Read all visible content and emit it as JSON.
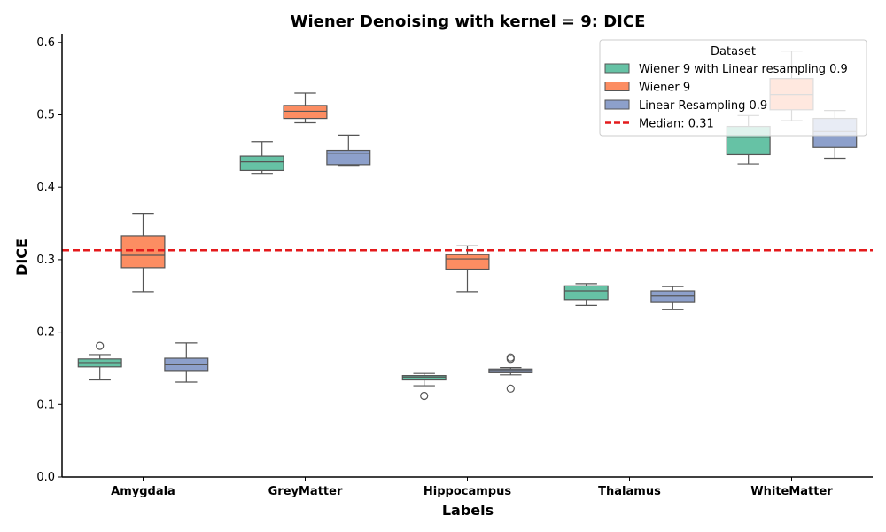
{
  "chart_data": {
    "type": "box",
    "title": "Wiener Denoising with kernel = 9: DICE",
    "xlabel": "Labels",
    "ylabel": "DICE",
    "ylim": [
      0,
      0.612
    ],
    "yticks": [
      "0.0",
      "0.1",
      "0.2",
      "0.3",
      "0.4",
      "0.5",
      "0.6"
    ],
    "categories": [
      "Amygdala",
      "GreyMatter",
      "Hippocampus",
      "Thalamus",
      "WhiteMatter"
    ],
    "legend": {
      "title": "Dataset",
      "placement": "top-right",
      "median_label": "Median: 0.31"
    },
    "median_line": {
      "value": 0.313,
      "color": "#e41a1c"
    },
    "series": [
      {
        "name": "Wiener 9 with Linear resampling 0.9",
        "color": "#66c2a5",
        "boxes": [
          {
            "category": "Amygdala",
            "whisker_low": 0.134,
            "q1": 0.152,
            "median": 0.158,
            "q3": 0.163,
            "whisker_high": 0.169,
            "outliers": [
              0.181
            ]
          },
          {
            "category": "GreyMatter",
            "whisker_low": 0.419,
            "q1": 0.423,
            "median": 0.435,
            "q3": 0.443,
            "whisker_high": 0.463,
            "outliers": []
          },
          {
            "category": "Hippocampus",
            "whisker_low": 0.126,
            "q1": 0.134,
            "median": 0.138,
            "q3": 0.14,
            "whisker_high": 0.143,
            "outliers": [
              0.112
            ]
          },
          {
            "category": "Thalamus",
            "whisker_low": 0.237,
            "q1": 0.245,
            "median": 0.257,
            "q3": 0.264,
            "whisker_high": 0.267,
            "outliers": []
          },
          {
            "category": "WhiteMatter",
            "whisker_low": 0.432,
            "q1": 0.445,
            "median": 0.469,
            "q3": 0.484,
            "whisker_high": 0.499,
            "outliers": []
          }
        ]
      },
      {
        "name": "Wiener 9",
        "color": "#fc8d62",
        "boxes": [
          {
            "category": "Amygdala",
            "whisker_low": 0.256,
            "q1": 0.289,
            "median": 0.306,
            "q3": 0.333,
            "whisker_high": 0.364,
            "outliers": []
          },
          {
            "category": "GreyMatter",
            "whisker_low": 0.489,
            "q1": 0.495,
            "median": 0.505,
            "q3": 0.513,
            "whisker_high": 0.53,
            "outliers": []
          },
          {
            "category": "Hippocampus",
            "whisker_low": 0.256,
            "q1": 0.287,
            "median": 0.301,
            "q3": 0.307,
            "whisker_high": 0.319,
            "outliers": []
          },
          {
            "category": "Thalamus",
            "whisker_low": null,
            "q1": null,
            "median": null,
            "q3": null,
            "whisker_high": null,
            "outliers": []
          },
          {
            "category": "WhiteMatter",
            "whisker_low": 0.492,
            "q1": 0.507,
            "median": 0.528,
            "q3": 0.55,
            "whisker_high": 0.588,
            "outliers": []
          }
        ]
      },
      {
        "name": "Linear Resampling 0.9",
        "color": "#8da0cb",
        "boxes": [
          {
            "category": "Amygdala",
            "whisker_low": 0.131,
            "q1": 0.147,
            "median": 0.155,
            "q3": 0.164,
            "whisker_high": 0.185,
            "outliers": []
          },
          {
            "category": "GreyMatter",
            "whisker_low": 0.43,
            "q1": 0.431,
            "median": 0.447,
            "q3": 0.451,
            "whisker_high": 0.472,
            "outliers": []
          },
          {
            "category": "Hippocampus",
            "whisker_low": 0.141,
            "q1": 0.144,
            "median": 0.147,
            "q3": 0.149,
            "whisker_high": 0.151,
            "outliers": [
              0.122,
              0.163,
              0.165
            ]
          },
          {
            "category": "Thalamus",
            "whisker_low": 0.231,
            "q1": 0.241,
            "median": 0.25,
            "q3": 0.257,
            "whisker_high": 0.263,
            "outliers": []
          },
          {
            "category": "WhiteMatter",
            "whisker_low": 0.44,
            "q1": 0.455,
            "median": 0.477,
            "q3": 0.495,
            "whisker_high": 0.506,
            "outliers": []
          }
        ]
      }
    ]
  }
}
